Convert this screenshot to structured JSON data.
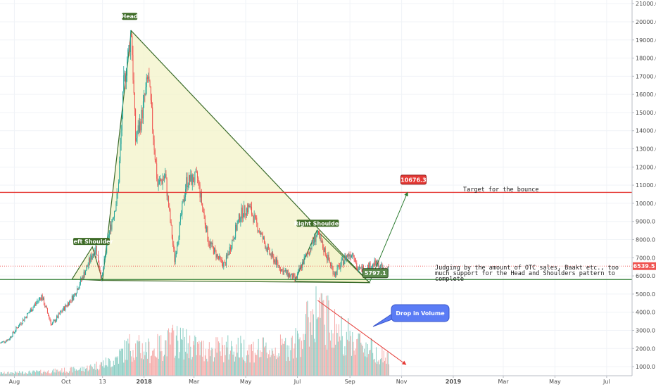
{
  "chart_data": {
    "type": "candlestick",
    "y_axis": {
      "min": 500,
      "max": 21200,
      "ticks": [
        1000,
        2000,
        3000,
        4000,
        5000,
        6000,
        7000,
        8000,
        9000,
        10000,
        11000,
        12000,
        13000,
        14000,
        15000,
        16000,
        17000,
        18000,
        19000,
        20000,
        21000
      ],
      "tick_labels": [
        "1000.0",
        "2000.0",
        "3000.0",
        "4000.0",
        "5000.0",
        "6000.0",
        "7000.0",
        "8000.0",
        "9000.0",
        "10000.0",
        "11000.0",
        "12000.0",
        "13000.0",
        "14000.0",
        "15000.0",
        "16000.0",
        "17000.0",
        "18000.0",
        "19000.0",
        "20000.0",
        "21000.0"
      ],
      "current_price_label": "6539.5",
      "current_price": 6539.5
    },
    "x_axis": {
      "start": "2017-07-15",
      "end": "2019-07-31",
      "ticks": [
        {
          "date": "2017-08-01",
          "label": "Aug",
          "bold": false
        },
        {
          "date": "2017-10-01",
          "label": "Oct",
          "bold": false
        },
        {
          "date": "2017-11-13",
          "label": "13",
          "bold": false
        },
        {
          "date": "2018-01-01",
          "label": "2018",
          "bold": true
        },
        {
          "date": "2018-03-01",
          "label": "Mar",
          "bold": false
        },
        {
          "date": "2018-05-01",
          "label": "May",
          "bold": false
        },
        {
          "date": "2018-07-01",
          "label": "Jul",
          "bold": false
        },
        {
          "date": "2018-09-01",
          "label": "Sep",
          "bold": false
        },
        {
          "date": "2018-11-01",
          "label": "Nov",
          "bold": false
        },
        {
          "date": "2019-01-01",
          "label": "2019",
          "bold": true
        },
        {
          "date": "2019-03-01",
          "label": "Mar",
          "bold": false
        },
        {
          "date": "2019-05-01",
          "label": "May",
          "bold": false
        },
        {
          "date": "2019-07-01",
          "label": "Jul",
          "bold": false
        }
      ]
    },
    "price_keypoints": [
      {
        "date": "2017-07-15",
        "price": 2300
      },
      {
        "date": "2017-07-25",
        "price": 2500
      },
      {
        "date": "2017-08-05",
        "price": 3200
      },
      {
        "date": "2017-08-20",
        "price": 4100
      },
      {
        "date": "2017-09-02",
        "price": 4900
      },
      {
        "date": "2017-09-14",
        "price": 3300
      },
      {
        "date": "2017-09-25",
        "price": 4000
      },
      {
        "date": "2017-10-10",
        "price": 4900
      },
      {
        "date": "2017-10-21",
        "price": 6000
      },
      {
        "date": "2017-11-05",
        "price": 7600
      },
      {
        "date": "2017-11-12",
        "price": 5800
      },
      {
        "date": "2017-11-20",
        "price": 8200
      },
      {
        "date": "2017-12-01",
        "price": 10500
      },
      {
        "date": "2017-12-08",
        "price": 16500
      },
      {
        "date": "2017-12-17",
        "price": 19500
      },
      {
        "date": "2017-12-22",
        "price": 13500
      },
      {
        "date": "2017-12-28",
        "price": 14500
      },
      {
        "date": "2018-01-06",
        "price": 17000
      },
      {
        "date": "2018-01-17",
        "price": 11000
      },
      {
        "date": "2018-01-26",
        "price": 11500
      },
      {
        "date": "2018-02-06",
        "price": 6900
      },
      {
        "date": "2018-02-20",
        "price": 11200
      },
      {
        "date": "2018-03-05",
        "price": 11400
      },
      {
        "date": "2018-03-18",
        "price": 7900
      },
      {
        "date": "2018-04-01",
        "price": 6800
      },
      {
        "date": "2018-04-06",
        "price": 6600
      },
      {
        "date": "2018-04-25",
        "price": 9400
      },
      {
        "date": "2018-05-05",
        "price": 9800
      },
      {
        "date": "2018-05-28",
        "price": 7300
      },
      {
        "date": "2018-06-13",
        "price": 6300
      },
      {
        "date": "2018-06-29",
        "price": 5800
      },
      {
        "date": "2018-07-06",
        "price": 6600
      },
      {
        "date": "2018-07-24",
        "price": 8300
      },
      {
        "date": "2018-08-01",
        "price": 7500
      },
      {
        "date": "2018-08-14",
        "price": 6100
      },
      {
        "date": "2018-08-28",
        "price": 7100
      },
      {
        "date": "2018-09-05",
        "price": 7300
      },
      {
        "date": "2018-09-10",
        "price": 6300
      },
      {
        "date": "2018-09-20",
        "price": 6450
      },
      {
        "date": "2018-10-01",
        "price": 6650
      },
      {
        "date": "2018-10-12",
        "price": 6300
      },
      {
        "date": "2018-10-17",
        "price": 6539.5
      }
    ],
    "volume_profile_keypoints": [
      {
        "date": "2017-07-15",
        "level": 0.04
      },
      {
        "date": "2017-09-01",
        "level": 0.06
      },
      {
        "date": "2017-10-20",
        "level": 0.1
      },
      {
        "date": "2017-11-25",
        "level": 0.22
      },
      {
        "date": "2017-12-15",
        "level": 0.45
      },
      {
        "date": "2018-01-10",
        "level": 0.38
      },
      {
        "date": "2018-02-06",
        "level": 0.55
      },
      {
        "date": "2018-03-10",
        "level": 0.4
      },
      {
        "date": "2018-04-20",
        "level": 0.42
      },
      {
        "date": "2018-06-01",
        "level": 0.38
      },
      {
        "date": "2018-07-01",
        "level": 0.5
      },
      {
        "date": "2018-07-22",
        "level": 1.0
      },
      {
        "date": "2018-08-20",
        "level": 0.65
      },
      {
        "date": "2018-09-20",
        "level": 0.45
      },
      {
        "date": "2018-10-17",
        "level": 0.25
      }
    ],
    "horizontal_lines": [
      {
        "price": 10600,
        "color": "#e53935"
      },
      {
        "price": 5800,
        "color": "#2e7d32"
      }
    ],
    "patterns": [
      {
        "type": "triangle",
        "points": [
          {
            "date": "2017-11-01",
            "price": 7600
          },
          {
            "date": "2017-11-13",
            "price": 5750
          },
          {
            "date": "2017-10-08",
            "price": 5820
          }
        ],
        "fill": "#f3f3c8"
      },
      {
        "type": "triangle",
        "points": [
          {
            "date": "2017-11-13",
            "price": 5750
          },
          {
            "date": "2017-12-17",
            "price": 19500
          },
          {
            "date": "2018-09-24",
            "price": 5630
          }
        ],
        "fill": "#f3f3c8"
      },
      {
        "type": "triangle",
        "points": [
          {
            "date": "2018-06-28",
            "price": 5700
          },
          {
            "date": "2018-07-24",
            "price": 8500
          },
          {
            "date": "2018-09-24",
            "price": 5630
          }
        ],
        "fill": "#f3f3c8"
      }
    ],
    "annotations": [
      {
        "text": "Head",
        "date": "2017-12-15",
        "price": 20300
      },
      {
        "text": "Left Shoulder",
        "date": "2017-10-31",
        "price": 7900
      },
      {
        "text": "Right Shoulder",
        "date": "2018-07-25",
        "price": 8900
      },
      {
        "text": "5797.1",
        "date": "2018-10-01",
        "price": 6150,
        "style": "green-tag"
      },
      {
        "text": "10676.3",
        "date": "2018-11-15",
        "price": 11300,
        "style": "red-tag"
      },
      {
        "text": "Drop in Volume",
        "style": "blue-callout"
      }
    ],
    "target_text": "Target for the bounce",
    "note_lines": [
      "Judging by the amount of OTC sales, Baakt etc., too",
      "much support for the Head and Shoulders pattern to",
      "complete"
    ]
  },
  "colors": {
    "up": "#26a69a",
    "down": "#ef5350",
    "vol_up": "#7fc9be",
    "vol_down": "#f4a3a1",
    "grid": "#f0f3f7",
    "pattern_line": "#3b6b2a",
    "resistance": "#e53935",
    "support": "#2e7d32",
    "arrow": "#2e7d32",
    "vol_arrow": "#e53935",
    "callout": "#5b7cf5"
  }
}
